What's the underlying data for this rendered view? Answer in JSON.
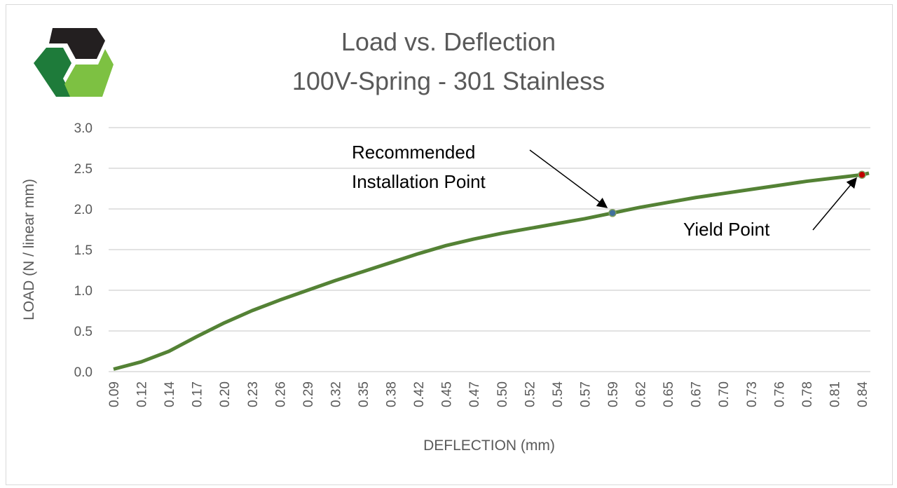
{
  "chart_data": {
    "type": "line",
    "title": [
      "Load vs. Deflection",
      "100V-Spring - 301 Stainless"
    ],
    "xlabel": "DEFLECTION (mm)",
    "ylabel": "LOAD (N / linear mm)",
    "ylim": [
      0,
      3.0
    ],
    "yticks": [
      "0.0",
      "0.5",
      "1.0",
      "1.5",
      "2.0",
      "2.5",
      "3.0"
    ],
    "grid": true,
    "categories": [
      "0.09",
      "0.12",
      "0.14",
      "0.17",
      "0.20",
      "0.23",
      "0.26",
      "0.29",
      "0.32",
      "0.35",
      "0.38",
      "0.42",
      "0.45",
      "0.47",
      "0.50",
      "0.52",
      "0.54",
      "0.57",
      "0.59",
      "0.62",
      "0.65",
      "0.67",
      "0.70",
      "0.73",
      "0.76",
      "0.78",
      "0.81",
      "0.84"
    ],
    "series": [
      {
        "name": "Load",
        "color": "#548235",
        "values": [
          0.03,
          0.12,
          0.25,
          0.43,
          0.6,
          0.75,
          0.88,
          1.0,
          1.12,
          1.23,
          1.34,
          1.45,
          1.55,
          1.63,
          1.7,
          1.76,
          1.82,
          1.88,
          1.95,
          2.02,
          2.08,
          2.14,
          2.19,
          2.24,
          2.29,
          2.34,
          2.38,
          2.42
        ]
      }
    ],
    "annotations": [
      {
        "text": [
          "Recommended",
          "Installation Point"
        ],
        "category": "0.59",
        "value": 1.95,
        "marker_color": "#41719c"
      },
      {
        "text": [
          "Yield Point"
        ],
        "category": "0.84",
        "value": 2.42,
        "marker_color": "#c00000"
      }
    ]
  },
  "logo": {
    "colors": [
      "#231f20",
      "#1e7b3a",
      "#7dc142"
    ]
  }
}
